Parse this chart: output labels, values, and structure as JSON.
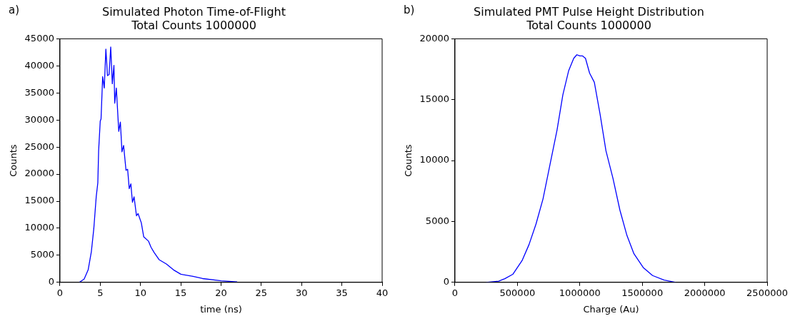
{
  "chart_data": [
    {
      "type": "line",
      "title": "Simulated Photon Time-of-Flight",
      "subtitle": "Total Counts 1000000",
      "xlabel": "time (ns)",
      "ylabel": "Counts",
      "annotations": [
        "a)"
      ],
      "xlim": [
        0,
        40
      ],
      "xticks": [
        0,
        5,
        10,
        15,
        20,
        25,
        30,
        35,
        40
      ],
      "ylim": [
        0,
        45000
      ],
      "yticks": [
        0,
        5000,
        10000,
        15000,
        20000,
        25000,
        30000,
        35000,
        40000,
        45000
      ],
      "grid": false,
      "legend": false,
      "marker": "none",
      "line_style": "solid",
      "series": [
        {
          "color": "#0000ff",
          "x": [
            2.4,
            3.0,
            3.5,
            3.9,
            4.2,
            4.5,
            4.7,
            4.8,
            5.0,
            5.1,
            5.3,
            5.5,
            5.7,
            5.9,
            6.1,
            6.3,
            6.5,
            6.7,
            6.8,
            7.0,
            7.3,
            7.5,
            7.7,
            7.9,
            8.2,
            8.4,
            8.6,
            8.8,
            9.0,
            9.2,
            9.5,
            9.7,
            10.1,
            10.4,
            11.0,
            11.3,
            11.7,
            12.3,
            13.2,
            14.1,
            15.0,
            16.5,
            17.7,
            20,
            22
          ],
          "values": [
            0,
            600,
            2300,
            5700,
            9900,
            15800,
            18400,
            24300,
            29800,
            30200,
            38000,
            35900,
            43100,
            38200,
            38400,
            43500,
            36700,
            40100,
            33100,
            35900,
            27900,
            29600,
            24100,
            25300,
            20700,
            20900,
            17300,
            18200,
            14800,
            15800,
            12300,
            12700,
            11000,
            8400,
            7600,
            6500,
            5500,
            4200,
            3400,
            2300,
            1500,
            1100,
            700,
            300,
            100
          ]
        }
      ]
    },
    {
      "type": "line",
      "title": "Simulated PMT Pulse Height Distribution",
      "subtitle": "Total Counts 1000000",
      "xlabel": "Charge (Au)",
      "ylabel": "Counts",
      "annotations": [
        "b)"
      ],
      "xlim": [
        0,
        2500000
      ],
      "xticks": [
        0,
        500000,
        1000000,
        1500000,
        2000000,
        2500000
      ],
      "ylim": [
        0,
        20000
      ],
      "yticks": [
        0,
        5000,
        10000,
        15000,
        20000
      ],
      "grid": false,
      "legend": false,
      "marker": "none",
      "line_style": "solid",
      "series": [
        {
          "color": "#0000ff",
          "x": [
            250000,
            350000,
            400000,
            463000,
            537000,
            593000,
            649000,
            705000,
            761000,
            817000,
            864000,
            910000,
            951000,
            976000,
            1000000,
            1022000,
            1045000,
            1078000,
            1116000,
            1162000,
            1209000,
            1265000,
            1321000,
            1377000,
            1433000,
            1507000,
            1582000,
            1675000,
            1769000
          ],
          "values": [
            0,
            100,
            300,
            660,
            1780,
            3100,
            4790,
            6850,
            9670,
            12490,
            15400,
            17370,
            18400,
            18690,
            18590,
            18590,
            18400,
            17180,
            16430,
            13800,
            10800,
            8550,
            5920,
            3850,
            2350,
            1220,
            560,
            190,
            0
          ]
        }
      ]
    }
  ]
}
